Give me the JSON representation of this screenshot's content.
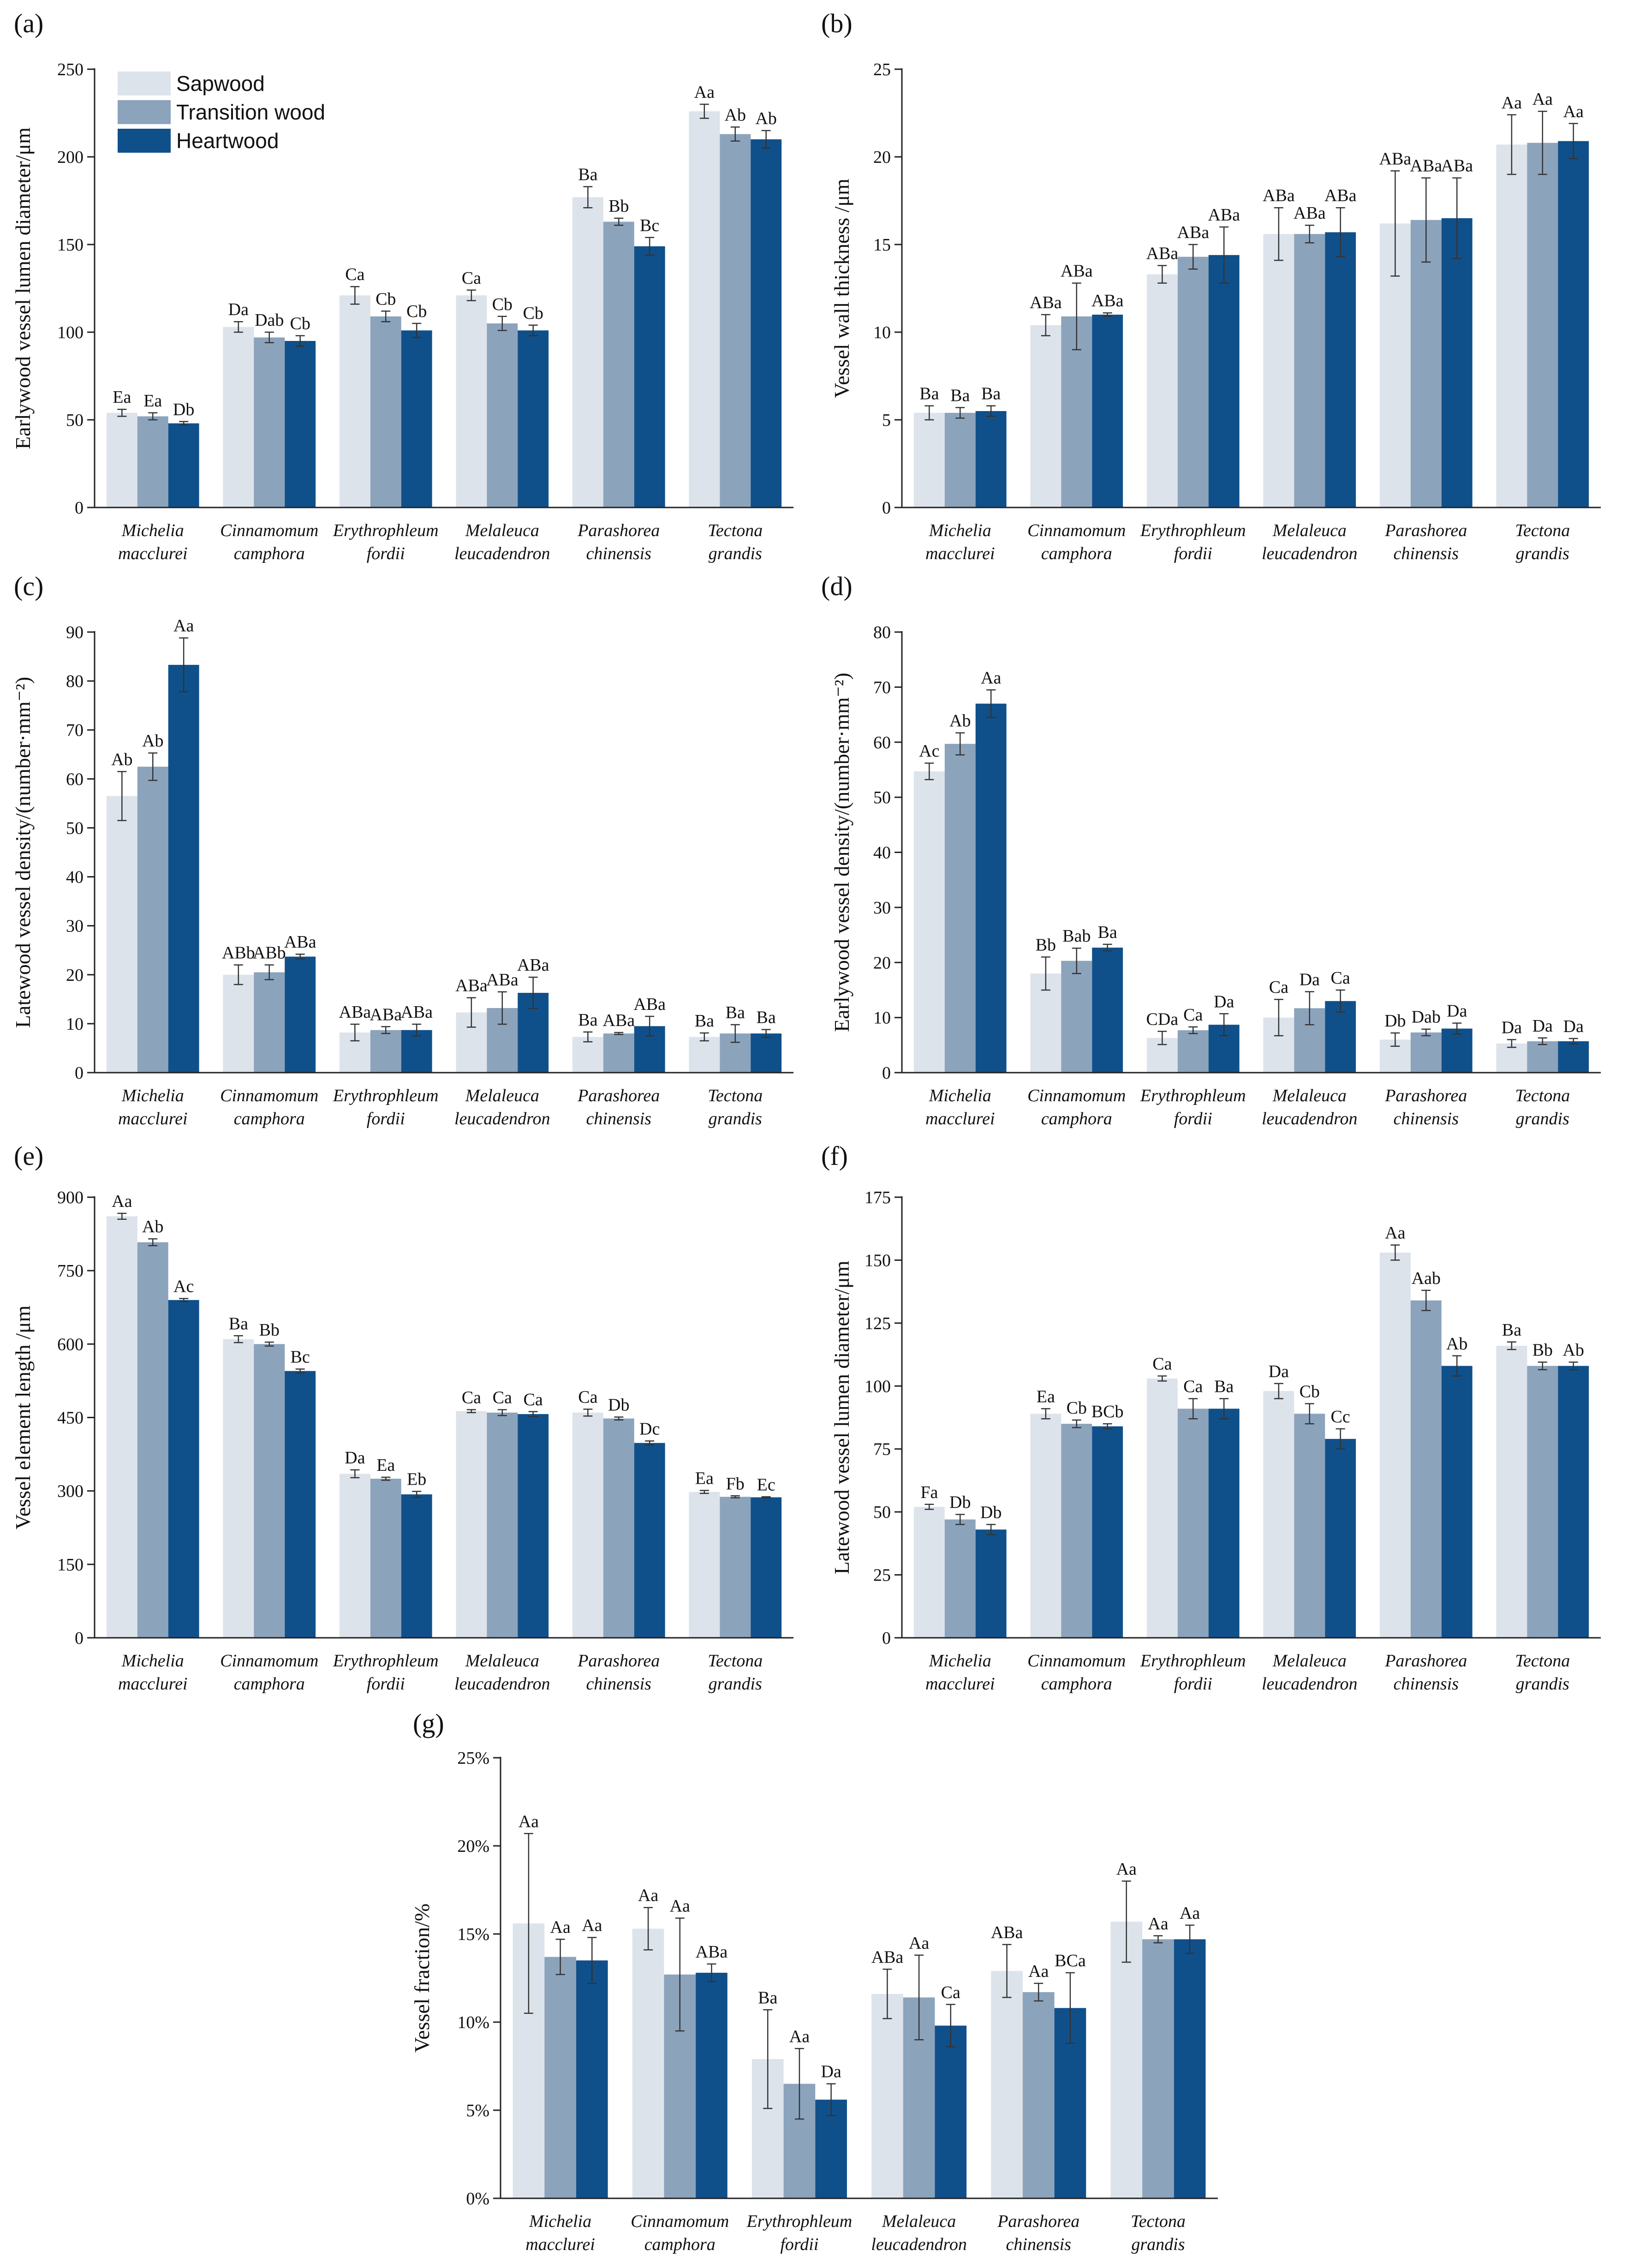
{
  "colors": {
    "sapwood": "#dde3ea",
    "transition": "#8ca3bc",
    "heartwood": "#10508a"
  },
  "categories": [
    [
      "Michelia",
      "macclurei"
    ],
    [
      "Cinnamomum",
      "camphora"
    ],
    [
      "Erythrophleum",
      "fordii"
    ],
    [
      "Melaleuca",
      "leucadendron"
    ],
    [
      "Parashorea",
      "chinensis"
    ],
    [
      "Tectona",
      "grandis"
    ]
  ],
  "legend": {
    "items": [
      {
        "label": "Sapwood",
        "color": "#dde3ea"
      },
      {
        "label": "Transition wood",
        "color": "#8ca3bc"
      },
      {
        "label": "Heartwood",
        "color": "#10508a"
      }
    ]
  },
  "chart_data": [
    {
      "panel": "(a)",
      "type": "bar",
      "ylabel": "Earlywood vessel lumen diameter/μm",
      "ylim": [
        0,
        250
      ],
      "yticks": [
        "0",
        "50",
        "100",
        "150",
        "200",
        "250"
      ],
      "series": [
        {
          "name": "Sapwood",
          "values": [
            54,
            103,
            121,
            121,
            177,
            226
          ],
          "errors": [
            2,
            3,
            5,
            3,
            6,
            4
          ],
          "letters": [
            "Ea",
            "Da",
            "Ca",
            "Ca",
            "Ba",
            "Aa"
          ]
        },
        {
          "name": "Transition wood",
          "values": [
            52,
            97,
            109,
            105,
            163,
            213
          ],
          "errors": [
            2,
            3,
            3,
            4,
            2,
            4
          ],
          "letters": [
            "Ea",
            "Dab",
            "Cb",
            "Cb",
            "Bb",
            "Ab"
          ]
        },
        {
          "name": "Heartwood",
          "values": [
            48,
            95,
            101,
            101,
            149,
            210
          ],
          "errors": [
            1,
            3,
            4,
            3,
            5,
            5
          ],
          "letters": [
            "Db",
            "Cb",
            "Cb",
            "Cb",
            "Bc",
            "Ab"
          ]
        }
      ]
    },
    {
      "panel": "(b)",
      "type": "bar",
      "ylabel": "Vessel wall thickness /μm",
      "ylim": [
        0,
        25
      ],
      "yticks": [
        "0",
        "5",
        "10",
        "15",
        "20",
        "25"
      ],
      "series": [
        {
          "name": "Sapwood",
          "values": [
            5.4,
            10.4,
            13.3,
            15.6,
            16.2,
            20.7
          ],
          "errors": [
            0.4,
            0.6,
            0.5,
            1.5,
            3.0,
            1.7
          ],
          "letters": [
            "Ba",
            "ABa",
            "ABa",
            "ABa",
            "ABa",
            "Aa"
          ]
        },
        {
          "name": "Transition wood",
          "values": [
            5.4,
            10.9,
            14.3,
            15.6,
            16.4,
            20.8
          ],
          "errors": [
            0.3,
            1.9,
            0.7,
            0.5,
            2.4,
            1.8
          ],
          "letters": [
            "Ba",
            "ABa",
            "ABa",
            "ABa",
            "ABa",
            "Aa"
          ]
        },
        {
          "name": "Heartwood",
          "values": [
            5.5,
            11.0,
            14.4,
            15.7,
            16.5,
            20.9
          ],
          "errors": [
            0.3,
            0.1,
            1.6,
            1.4,
            2.3,
            1.0
          ],
          "letters": [
            "Ba",
            "ABa",
            "ABa",
            "ABa",
            "ABa",
            "Aa"
          ]
        }
      ]
    },
    {
      "panel": "(c)",
      "type": "bar",
      "ylabel": "Latewood vessel density/(number·mm⁻²)",
      "ylim": [
        0,
        90
      ],
      "yticks": [
        "0",
        "10",
        "20",
        "30",
        "40",
        "50",
        "60",
        "70",
        "80",
        "90"
      ],
      "series": [
        {
          "name": "Sapwood",
          "values": [
            56.5,
            20,
            8.2,
            12.3,
            7.3,
            7.3
          ],
          "errors": [
            5,
            2,
            1.7,
            3,
            1,
            0.8
          ],
          "letters": [
            "Ab",
            "ABb",
            "ABa",
            "ABa",
            "Ba",
            "Ba"
          ]
        },
        {
          "name": "Transition wood",
          "values": [
            62.5,
            20.5,
            8.7,
            13.2,
            8,
            8
          ],
          "errors": [
            2.8,
            1.5,
            0.7,
            3.3,
            0.2,
            1.8
          ],
          "letters": [
            "Ab",
            "ABb",
            "ABa",
            "ABa",
            "ABa",
            "Ba"
          ]
        },
        {
          "name": "Heartwood",
          "values": [
            83.3,
            23.7,
            8.7,
            16.3,
            9.5,
            8
          ],
          "errors": [
            5.5,
            0.5,
            1.2,
            3.2,
            2,
            0.8
          ],
          "letters": [
            "Aa",
            "ABa",
            "ABa",
            "ABa",
            "ABa",
            "Ba"
          ]
        }
      ]
    },
    {
      "panel": "(d)",
      "type": "bar",
      "ylabel": "Earlywood vessel density/(number·mm⁻²)",
      "ylim": [
        0,
        80
      ],
      "yticks": [
        "0",
        "10",
        "20",
        "30",
        "40",
        "50",
        "60",
        "70",
        "80"
      ],
      "series": [
        {
          "name": "Sapwood",
          "values": [
            54.7,
            18,
            6.3,
            10,
            6,
            5.3
          ],
          "errors": [
            1.5,
            3,
            1.2,
            3.3,
            1.2,
            0.7
          ],
          "letters": [
            "Ac",
            "Bb",
            "CDa",
            "Ca",
            "Db",
            "Da"
          ]
        },
        {
          "name": "Transition wood",
          "values": [
            59.7,
            20.3,
            7.7,
            11.7,
            7.3,
            5.7
          ],
          "errors": [
            2,
            2.3,
            0.6,
            3,
            0.6,
            0.6
          ],
          "letters": [
            "Ab",
            "Bab",
            "Ca",
            "Da",
            "Dab",
            "Da"
          ]
        },
        {
          "name": "Heartwood",
          "values": [
            67,
            22.7,
            8.7,
            13,
            8,
            5.7
          ],
          "errors": [
            2.5,
            0.6,
            2,
            2,
            1,
            0.5
          ],
          "letters": [
            "Aa",
            "Ba",
            "Da",
            "Ca",
            "Da",
            "Da"
          ]
        }
      ]
    },
    {
      "panel": "(e)",
      "type": "bar",
      "ylabel": "Vessel element length /μm",
      "ylim": [
        0,
        900
      ],
      "yticks": [
        "0",
        "150",
        "300",
        "450",
        "600",
        "750",
        "900"
      ],
      "series": [
        {
          "name": "Sapwood",
          "values": [
            861,
            610,
            335,
            463,
            460,
            298
          ],
          "errors": [
            6,
            7,
            8,
            3,
            7,
            3
          ],
          "letters": [
            "Aa",
            "Ba",
            "Da",
            "Ca",
            "Ca",
            "Ea"
          ]
        },
        {
          "name": "Transition wood",
          "values": [
            808,
            600,
            325,
            460,
            448,
            288
          ],
          "errors": [
            7,
            4,
            3,
            6,
            3,
            2
          ],
          "letters": [
            "Ab",
            "Bb",
            "Ea",
            "Ca",
            "Db",
            "Fb"
          ]
        },
        {
          "name": "Heartwood",
          "values": [
            690,
            545,
            293,
            457,
            398,
            287
          ],
          "errors": [
            3,
            4,
            6,
            5,
            4,
            1
          ],
          "letters": [
            "Ac",
            "Bc",
            "Eb",
            "Ca",
            "Dc",
            "Ec"
          ]
        }
      ]
    },
    {
      "panel": "(f)",
      "type": "bar",
      "ylabel": "Latewood vessel lumen diameter/μm",
      "ylim": [
        0,
        175
      ],
      "yticks": [
        "0",
        "25",
        "50",
        "75",
        "100",
        "125",
        "150",
        "175"
      ],
      "series": [
        {
          "name": "Sapwood",
          "values": [
            52,
            89,
            103,
            98,
            153,
            116
          ],
          "errors": [
            1,
            2,
            1,
            3,
            3,
            1.5
          ],
          "letters": [
            "Fa",
            "Ea",
            "Ca",
            "Da",
            "Aa",
            "Ba"
          ]
        },
        {
          "name": "Transition wood",
          "values": [
            47,
            85,
            91,
            89,
            134,
            108
          ],
          "errors": [
            2,
            1.5,
            4,
            4,
            4,
            1.5
          ],
          "letters": [
            "Db",
            "Cb",
            "Ca",
            "Cb",
            "Aab",
            "Bb"
          ]
        },
        {
          "name": "Heartwood",
          "values": [
            43,
            84,
            91,
            79,
            108,
            108
          ],
          "errors": [
            2,
            1,
            4,
            4,
            4,
            1.5
          ],
          "letters": [
            "Db",
            "BCb",
            "Ba",
            "Cc",
            "Ab",
            "Ab"
          ]
        }
      ]
    },
    {
      "panel": "(g)",
      "type": "bar",
      "ylabel": "Vessel fraction/%",
      "ylim": [
        0,
        25
      ],
      "yticks": [
        "0%",
        "5%",
        "10%",
        "15%",
        "20%",
        "25%"
      ],
      "series": [
        {
          "name": "Sapwood",
          "values": [
            15.6,
            15.3,
            7.9,
            11.6,
            12.9,
            15.7
          ],
          "errors": [
            5.1,
            1.2,
            2.8,
            1.4,
            1.5,
            2.3
          ],
          "letters": [
            "Aa",
            "Aa",
            "Ba",
            "ABa",
            "ABa",
            "Aa"
          ]
        },
        {
          "name": "Transition wood",
          "values": [
            13.7,
            12.7,
            6.5,
            11.4,
            11.7,
            14.7
          ],
          "errors": [
            1,
            3.2,
            2,
            2.4,
            0.5,
            0.2
          ],
          "letters": [
            "Aa",
            "Aa",
            "Aa",
            "Aa",
            "Aa",
            "Aa"
          ]
        },
        {
          "name": "Heartwood",
          "values": [
            13.5,
            12.8,
            5.6,
            9.8,
            10.8,
            14.7
          ],
          "errors": [
            1.3,
            0.5,
            0.9,
            1.2,
            2,
            0.8
          ],
          "letters": [
            "Aa",
            "ABa",
            "Da",
            "Ca",
            "BCa",
            "Aa"
          ]
        }
      ]
    }
  ]
}
